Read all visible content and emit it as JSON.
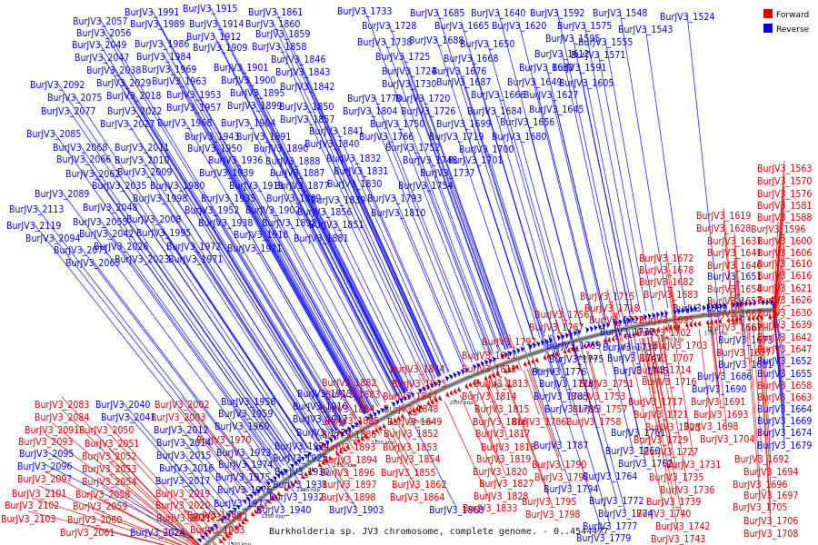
{
  "caption": "Burkholderia sp. JV3 chromosome, complete genome. - 0..4544477",
  "legend": {
    "forward_label": "Forward",
    "reverse_label": "Reverse",
    "forward_color": "#dd0000",
    "reverse_color": "#0000ee"
  },
  "scale_ticks": [
    "1650 kbp",
    "1700 kbp",
    "1750 kbp",
    "1800 kbp",
    "1850 kbp",
    "1900 kbp",
    "1950 kbp",
    "2000 kbp",
    "2050 kbp",
    "2100 kbp",
    "2150 kbp",
    "2200 kbp",
    "2250 kbp",
    "2300 kbp"
  ],
  "reverse_genes": [
    "BurJV3_1524",
    "BurJV3_1543",
    "BurJV3_1548",
    "BurJV3_1555",
    "BurJV3_1571",
    "BurJV3_1575",
    "BurJV3_1591",
    "BurJV3_1592",
    "BurJV3_1595",
    "BurJV3_1605",
    "BurJV3_1612",
    "BurJV3_1620",
    "BurJV3_1627",
    "BurJV3_1632",
    "BurJV3_1640",
    "BurJV3_1645",
    "BurJV3_1649",
    "BurJV3_1650",
    "BurJV3_1656",
    "BurJV3_1665",
    "BurJV3_1666",
    "BurJV3_1668",
    "BurJV3_1676",
    "BurJV3_1680",
    "BurJV3_1684",
    "BurJV3_1685",
    "BurJV3_1687",
    "BurJV3_1688",
    "BurJV3_1699",
    "BurJV3_1700",
    "BurJV3_1701",
    "BurJV3_1719",
    "BurJV3_1720",
    "BurJV3_1724",
    "BurJV3_1725",
    "BurJV3_1726",
    "BurJV3_1728",
    "BurJV3_1730",
    "BurJV3_1733",
    "BurJV3_1737",
    "BurJV3_1738",
    "BurJV3_1748",
    "BurJV3_1750",
    "BurJV3_1752",
    "BurJV3_1754",
    "BurJV3_1766",
    "BurJV3_1770",
    "BurJV3_1793",
    "BurJV3_1804",
    "BurJV3_1810",
    "BurJV3_1830",
    "BurJV3_1831",
    "BurJV3_1832",
    "BurJV3_1839",
    "BurJV3_1840",
    "BurJV3_1841",
    "BurJV3_1842",
    "BurJV3_1843",
    "BurJV3_1846",
    "BurJV3_1850",
    "BurJV3_1851",
    "BurJV3_1856",
    "BurJV3_1857",
    "BurJV3_1858",
    "BurJV3_1859",
    "BurJV3_1860",
    "BurJV3_1861",
    "BurJV3_1877",
    "BurJV3_1881",
    "BurJV3_1887",
    "BurJV3_1888",
    "BurJV3_1889",
    "BurJV3_1890",
    "BurJV3_1891",
    "BurJV3_1892",
    "BurJV3_1895",
    "BurJV3_1899",
    "BurJV3_1900",
    "BurJV3_1901",
    "BurJV3_1902",
    "BurJV3_1904",
    "BurJV3_1909",
    "BurJV3_1912",
    "BurJV3_1914",
    "BurJV3_1915",
    "BurJV3_1918",
    "BurJV3_1919",
    "BurJV3_1921",
    "BurJV3_1935",
    "BurJV3_1936",
    "BurJV3_1938",
    "BurJV3_1939",
    "BurJV3_1943",
    "BurJV3_1950",
    "BurJV3_1952",
    "BurJV3_1953",
    "BurJV3_1957",
    "BurJV3_1963",
    "BurJV3_1968",
    "BurJV3_1969",
    "BurJV3_1971",
    "BurJV3_1972",
    "BurJV3_1980",
    "BurJV3_1984",
    "BurJV3_1986",
    "BurJV3_1989",
    "BurJV3_1991",
    "BurJV3_1995",
    "BurJV3_1998",
    "BurJV3_2008",
    "BurJV3_2009",
    "BurJV3_2010",
    "BurJV3_2011",
    "BurJV3_2018",
    "BurJV3_2022",
    "BurJV3_2023",
    "BurJV3_2026",
    "BurJV3_2027",
    "BurJV3_2029",
    "BurJV3_2035",
    "BurJV3_2038",
    "BurJV3_2042",
    "BurJV3_2047",
    "BurJV3_2048",
    "BurJV3_2049",
    "BurJV3_2055",
    "BurJV3_2056",
    "BurJV3_2057",
    "BurJV3_2062",
    "BurJV3_2065",
    "BurJV3_2066",
    "BurJV3_2068",
    "BurJV3_2071",
    "BurJV3_2075",
    "BurJV3_2077",
    "BurJV3_2085",
    "BurJV3_2089",
    "BurJV3_2092",
    "BurJV3_2094",
    "BurJV3_2113",
    "BurJV3_2119",
    "BurJV3_1651",
    "BurJV3_1652",
    "BurJV3_1655",
    "BurJV3_1664",
    "BurJV3_1669",
    "BurJV3_1673",
    "BurJV3_1674",
    "BurJV3_1679",
    "BurJV3_1681",
    "BurJV3_1686",
    "BurJV3_1689",
    "BurJV3_1690",
    "BurJV3_1732",
    "BurJV3_1734",
    "BurJV3_1741",
    "BurJV3_1745",
    "BurJV3_1760",
    "BurJV3_1761",
    "BurJV3_1762",
    "BurJV3_1764",
    "BurJV3_1769",
    "BurJV3_1772",
    "BurJV3_1774",
    "BurJV3_1775",
    "BurJV3_1776",
    "BurJV3_1777",
    "BurJV3_1778",
    "BurJV3_1779",
    "BurJV3_1783",
    "BurJV3_1785",
    "BurJV3_1787",
    "BurJV3_1794",
    "BurJV3_1868",
    "BurJV3_1903",
    "BurJV3_1913",
    "BurJV3_1916",
    "BurJV3_1917",
    "BurJV3_1920",
    "BurJV3_1924",
    "BurJV3_1925",
    "BurJV3_1930",
    "BurJV3_1931",
    "BurJV3_1932",
    "BurJV3_1940",
    "BurJV3_1958",
    "BurJV3_1959",
    "BurJV3_1960",
    "BurJV3_1973",
    "BurJV3_1974",
    "BurJV3_1975",
    "BurJV3_1976",
    "BurJV3_1977",
    "BurJV3_2012",
    "BurJV3_2014",
    "BurJV3_2015",
    "BurJV3_2016",
    "BurJV3_2017",
    "BurJV3_2024",
    "BurJV3_2040",
    "BurJV3_2041",
    "BurJV3_2095",
    "BurJV3_2096"
  ],
  "forward_genes": [
    "BurJV3_1563",
    "BurJV3_1570",
    "BurJV3_1576",
    "BurJV3_1581",
    "BurJV3_1588",
    "BurJV3_1596",
    "BurJV3_1600",
    "BurJV3_1606",
    "BurJV3_1610",
    "BurJV3_1616",
    "BurJV3_1619",
    "BurJV3_1621",
    "BurJV3_1626",
    "BurJV3_1628",
    "BurJV3_1630",
    "BurJV3_1631",
    "BurJV3_1639",
    "BurJV3_1641",
    "BurJV3_1642",
    "BurJV3_1646",
    "BurJV3_1647",
    "BurJV3_1654",
    "BurJV3_1657",
    "BurJV3_1658",
    "BurJV3_1662",
    "BurJV3_1663",
    "BurJV3_1667",
    "BurJV3_1672",
    "BurJV3_1677",
    "BurJV3_1678",
    "BurJV3_1682",
    "BurJV3_1683",
    "BurJV3_1691",
    "BurJV3_1692",
    "BurJV3_1693",
    "BurJV3_1694",
    "BurJV3_1695",
    "BurJV3_1696",
    "BurJV3_1697",
    "BurJV3_1698",
    "BurJV3_1702",
    "BurJV3_1703",
    "BurJV3_1704",
    "BurJV3_1705",
    "BurJV3_1706",
    "BurJV3_1707",
    "BurJV3_1708",
    "BurJV3_1714",
    "BurJV3_1715",
    "BurJV3_1716",
    "BurJV3_1717",
    "BurJV3_1718",
    "BurJV3_1721",
    "BurJV3_1722",
    "BurJV3_1723",
    "BurJV3_1727",
    "BurJV3_1729",
    "BurJV3_1731",
    "BurJV3_1735",
    "BurJV3_1736",
    "BurJV3_1739",
    "BurJV3_1740",
    "BurJV3_1742",
    "BurJV3_1743",
    "BurJV3_1751",
    "BurJV3_1753",
    "BurJV3_1756",
    "BurJV3_1757",
    "BurJV3_1758",
    "BurJV3_1767",
    "BurJV3_1786",
    "BurJV3_1790",
    "BurJV3_1791",
    "BurJV3_1792",
    "BurJV3_1795",
    "BurJV3_1798",
    "BurJV3_1811",
    "BurJV3_1812",
    "BurJV3_1813",
    "BurJV3_1814",
    "BurJV3_1815",
    "BurJV3_1816",
    "BurJV3_1817",
    "BurJV3_1818",
    "BurJV3_1819",
    "BurJV3_1820",
    "BurJV3_1827",
    "BurJV3_1828",
    "BurJV3_1833",
    "BurJV3_1844",
    "BurJV3_1845",
    "BurJV3_1847",
    "BurJV3_1848",
    "BurJV3_1849",
    "BurJV3_1852",
    "BurJV3_1853",
    "BurJV3_1854",
    "BurJV3_1855",
    "BurJV3_1862",
    "BurJV3_1864",
    "BurJV3_1882",
    "BurJV3_1883",
    "BurJV3_1884",
    "BurJV3_1885",
    "BurJV3_1886",
    "BurJV3_1893",
    "BurJV3_1894",
    "BurJV3_1896",
    "BurJV3_1897",
    "BurJV3_1898",
    "BurJV3_1970",
    "BurJV3_1978",
    "BurJV3_1982",
    "BurJV3_1983",
    "BurJV3_2002",
    "BurJV3_2003",
    "BurJV3_2019",
    "BurJV3_2020",
    "BurJV3_2021",
    "BurJV3_2050",
    "BurJV3_2051",
    "BurJV3_2052",
    "BurJV3_2053",
    "BurJV3_2054",
    "BurJV3_2058",
    "BurJV3_2059",
    "BurJV3_2060",
    "BurJV3_2061",
    "BurJV3_2083",
    "BurJV3_2084",
    "BurJV3_2091",
    "BurJV3_2093",
    "BurJV3_2097",
    "BurJV3_2101",
    "BurJV3_2102",
    "BurJV3_2103"
  ]
}
